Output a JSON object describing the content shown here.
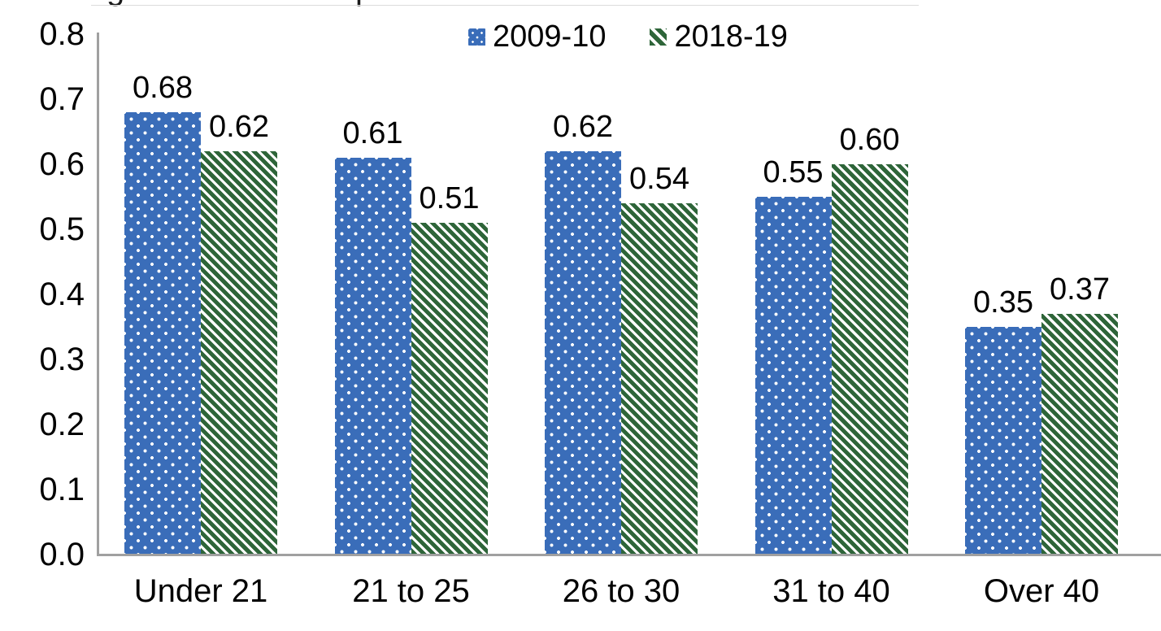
{
  "clipped_title": {
    "fragments": [
      "g",
      "p"
    ]
  },
  "chart_data": {
    "type": "bar",
    "categories": [
      "Under 21",
      "21 to 25",
      "26 to 30",
      "31 to 40",
      "Over 40"
    ],
    "series": [
      {
        "name": "2009-10",
        "color": "#3a6db9",
        "pattern": "white-dots",
        "values": [
          0.68,
          0.61,
          0.62,
          0.55,
          0.35
        ],
        "value_labels": [
          "0.68",
          "0.61",
          "0.62",
          "0.55",
          "0.35"
        ]
      },
      {
        "name": "2018-19",
        "color": "#2e6539",
        "pattern": "white-diagonal-stripes",
        "values": [
          0.62,
          0.51,
          0.54,
          0.6,
          0.37
        ],
        "value_labels": [
          "0.62",
          "0.51",
          "0.54",
          "0.60",
          "0.37"
        ]
      }
    ],
    "ylim": [
      0.0,
      0.8
    ],
    "yticks": [
      "0.0",
      "0.1",
      "0.2",
      "0.3",
      "0.4",
      "0.5",
      "0.6",
      "0.7",
      "0.8"
    ],
    "grid": false,
    "legend_position": "top-center",
    "data_labels": "outside-end",
    "axis_color": "#a0a0a0",
    "text_color": "#000000"
  }
}
